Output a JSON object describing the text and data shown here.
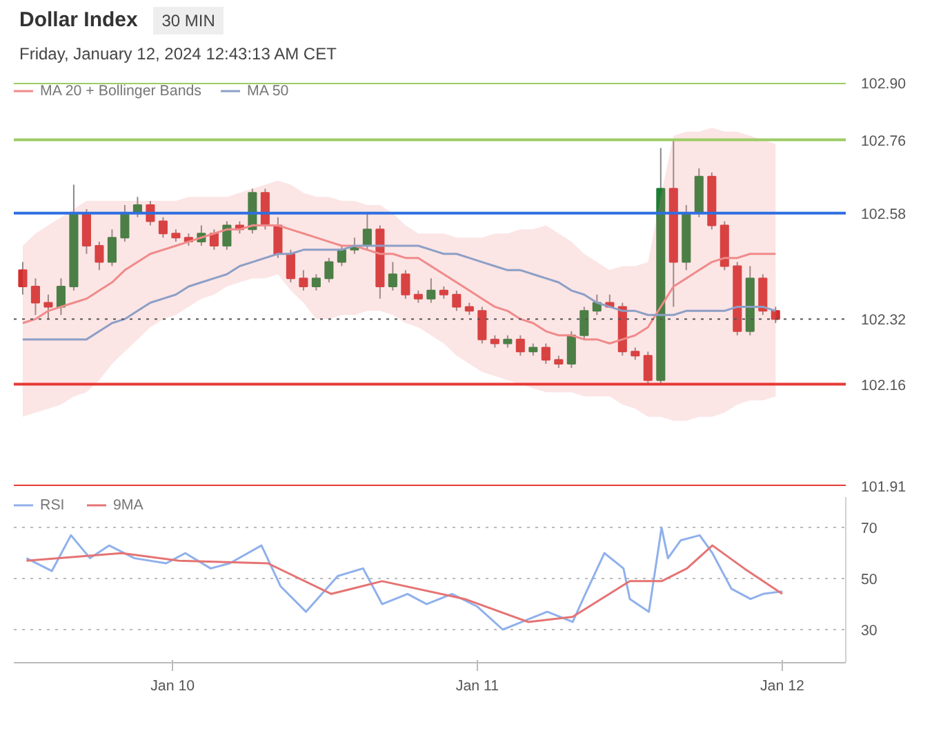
{
  "chart_data": [
    {
      "type": "candlestick",
      "title": "Dollar Index",
      "subtitle": "30 MIN",
      "annotations": [
        "Friday, January 12, 2024 12:43:13 AM CET"
      ],
      "categories": [
        null,
        null,
        null,
        null,
        null,
        null,
        null,
        null,
        null,
        null,
        null,
        null,
        null,
        null,
        null,
        null,
        null,
        null,
        null,
        null,
        null,
        null,
        null,
        null,
        null,
        null,
        null,
        null,
        null,
        null,
        null,
        null,
        null,
        null,
        null,
        null,
        null,
        null,
        null,
        null,
        null,
        null,
        null,
        null,
        null,
        null,
        null,
        null,
        null,
        null,
        null,
        null,
        null,
        null,
        null,
        null,
        null,
        null,
        null,
        null
      ],
      "ohlc": [
        [
          102.44,
          102.46,
          102.38,
          102.4
        ],
        [
          102.4,
          102.42,
          102.33,
          102.36
        ],
        [
          102.36,
          102.38,
          102.32,
          102.35
        ],
        [
          102.35,
          102.42,
          102.33,
          102.4
        ],
        [
          102.4,
          102.65,
          102.39,
          102.58
        ],
        [
          102.58,
          102.59,
          102.48,
          102.5
        ],
        [
          102.5,
          102.51,
          102.44,
          102.46
        ],
        [
          102.46,
          102.54,
          102.45,
          102.52
        ],
        [
          102.52,
          102.6,
          102.51,
          102.58
        ],
        [
          102.58,
          102.62,
          102.57,
          102.6
        ],
        [
          102.6,
          102.61,
          102.55,
          102.56
        ],
        [
          102.56,
          102.57,
          102.52,
          102.53
        ],
        [
          102.53,
          102.54,
          102.51,
          102.52
        ],
        [
          102.52,
          102.53,
          102.5,
          102.51
        ],
        [
          102.51,
          102.55,
          102.5,
          102.53
        ],
        [
          102.53,
          102.54,
          102.49,
          102.5
        ],
        [
          102.5,
          102.56,
          102.49,
          102.55
        ],
        [
          102.55,
          102.56,
          102.53,
          102.54
        ],
        [
          102.54,
          102.64,
          102.53,
          102.63
        ],
        [
          102.63,
          102.64,
          102.54,
          102.55
        ],
        [
          102.55,
          102.57,
          102.47,
          102.48
        ],
        [
          102.48,
          102.49,
          102.41,
          102.42
        ],
        [
          102.42,
          102.44,
          102.39,
          102.4
        ],
        [
          102.4,
          102.43,
          102.39,
          102.42
        ],
        [
          102.42,
          102.47,
          102.41,
          102.46
        ],
        [
          102.46,
          102.5,
          102.45,
          102.49
        ],
        [
          102.49,
          102.52,
          102.48,
          102.5
        ],
        [
          102.5,
          102.58,
          102.49,
          102.54
        ],
        [
          102.54,
          102.55,
          102.37,
          102.4
        ],
        [
          102.4,
          102.46,
          102.39,
          102.43
        ],
        [
          102.43,
          102.44,
          102.37,
          102.38
        ],
        [
          102.38,
          102.39,
          102.36,
          102.37
        ],
        [
          102.37,
          102.42,
          102.36,
          102.39
        ],
        [
          102.39,
          102.4,
          102.37,
          102.38
        ],
        [
          102.38,
          102.39,
          102.34,
          102.35
        ],
        [
          102.35,
          102.36,
          102.33,
          102.34
        ],
        [
          102.34,
          102.35,
          102.26,
          102.27
        ],
        [
          102.27,
          102.28,
          102.25,
          102.26
        ],
        [
          102.26,
          102.28,
          102.25,
          102.27
        ],
        [
          102.27,
          102.28,
          102.23,
          102.24
        ],
        [
          102.24,
          102.26,
          102.23,
          102.25
        ],
        [
          102.25,
          102.26,
          102.21,
          102.22
        ],
        [
          102.22,
          102.23,
          102.2,
          102.21
        ],
        [
          102.21,
          102.29,
          102.2,
          102.28
        ],
        [
          102.28,
          102.35,
          102.27,
          102.34
        ],
        [
          102.34,
          102.38,
          102.33,
          102.36
        ],
        [
          102.36,
          102.38,
          102.35,
          102.35
        ],
        [
          102.35,
          102.36,
          102.23,
          102.24
        ],
        [
          102.24,
          102.25,
          102.22,
          102.23
        ],
        [
          102.23,
          102.24,
          102.16,
          102.17
        ],
        [
          102.17,
          102.74,
          102.16,
          102.64
        ],
        [
          102.64,
          102.76,
          102.35,
          102.46
        ],
        [
          102.46,
          102.6,
          102.44,
          102.58
        ],
        [
          102.58,
          102.69,
          102.57,
          102.67
        ],
        [
          102.67,
          102.68,
          102.54,
          102.55
        ],
        [
          102.55,
          102.56,
          102.44,
          102.45
        ],
        [
          102.45,
          102.46,
          102.28,
          102.29
        ],
        [
          102.29,
          102.45,
          102.28,
          102.42
        ],
        [
          102.42,
          102.43,
          102.33,
          102.34
        ],
        [
          102.34,
          102.35,
          102.31,
          102.32
        ]
      ],
      "colors": [
        "#d32f2f",
        "#d32f2f",
        "#d32f2f",
        "#1e7d34",
        "#1e7d34",
        "#d32f2f",
        "#d32f2f",
        "#1e7d34",
        "#1e7d34",
        "#1e7d34",
        "#d32f2f",
        "#d32f2f",
        "#d32f2f",
        "#d32f2f",
        "#1e7d34",
        "#d32f2f",
        "#1e7d34",
        "#d32f2f",
        "#1e7d34",
        "#d32f2f",
        "#d32f2f",
        "#d32f2f",
        "#d32f2f",
        "#1e7d34",
        "#1e7d34",
        "#1e7d34",
        "#1e7d34",
        "#1e7d34",
        "#d32f2f",
        "#1e7d34",
        "#d32f2f",
        "#d32f2f",
        "#1e7d34",
        "#d32f2f",
        "#d32f2f",
        "#d32f2f",
        "#d32f2f",
        "#d32f2f",
        "#1e7d34",
        "#d32f2f",
        "#1e7d34",
        "#d32f2f",
        "#d32f2f",
        "#1e7d34",
        "#1e7d34",
        "#1e7d34",
        "#d32f2f",
        "#d32f2f",
        "#d32f2f",
        "#d32f2f",
        "#1e7d34",
        "#d32f2f",
        "#1e7d34",
        "#1e7d34",
        "#d32f2f",
        "#d32f2f",
        "#d32f2f",
        "#1e7d34",
        "#d32f2f",
        "#d32f2f"
      ],
      "series": [
        {
          "name": "MA 20 + Bollinger Bands",
          "type": "line",
          "color": "#f08a8a",
          "values": [
            102.31,
            102.32,
            102.34,
            102.35,
            102.36,
            102.37,
            102.39,
            102.41,
            102.44,
            102.46,
            102.48,
            102.49,
            102.5,
            102.51,
            102.52,
            102.53,
            102.54,
            102.54,
            102.55,
            102.55,
            102.55,
            102.54,
            102.53,
            102.52,
            102.51,
            102.5,
            102.5,
            102.49,
            102.48,
            102.48,
            102.47,
            102.47,
            102.45,
            102.43,
            102.41,
            102.39,
            102.37,
            102.35,
            102.34,
            102.32,
            102.31,
            102.29,
            102.28,
            102.28,
            102.27,
            102.27,
            102.26,
            102.27,
            102.28,
            102.3,
            102.35,
            102.4,
            102.42,
            102.44,
            102.46,
            102.47,
            102.47,
            102.48,
            102.48,
            102.48
          ],
          "lower": [
            102.08,
            102.09,
            102.1,
            102.11,
            102.13,
            102.14,
            102.17,
            102.21,
            102.24,
            102.27,
            102.3,
            102.32,
            102.33,
            102.35,
            102.37,
            102.38,
            102.4,
            102.41,
            102.42,
            102.42,
            102.43,
            102.39,
            102.36,
            102.32,
            102.32,
            102.33,
            102.33,
            102.34,
            102.34,
            102.33,
            102.31,
            102.3,
            102.28,
            102.26,
            102.23,
            102.21,
            102.19,
            102.18,
            102.17,
            102.16,
            102.15,
            102.14,
            102.14,
            102.14,
            102.13,
            102.13,
            102.13,
            102.11,
            102.1,
            102.08,
            102.08,
            102.07,
            102.07,
            102.08,
            102.08,
            102.09,
            102.11,
            102.12,
            102.12,
            102.13
          ],
          "upper": [
            102.5,
            102.53,
            102.55,
            102.57,
            102.59,
            102.61,
            102.61,
            102.61,
            102.61,
            102.61,
            102.61,
            102.61,
            102.61,
            102.62,
            102.62,
            102.62,
            102.62,
            102.63,
            102.64,
            102.65,
            102.66,
            102.65,
            102.63,
            102.62,
            102.62,
            102.61,
            102.61,
            102.6,
            102.6,
            102.58,
            102.55,
            102.53,
            102.53,
            102.53,
            102.52,
            102.52,
            102.52,
            102.53,
            102.53,
            102.54,
            102.54,
            102.55,
            102.53,
            102.51,
            102.48,
            102.46,
            102.44,
            102.45,
            102.45,
            102.46,
            102.62,
            102.77,
            102.78,
            102.78,
            102.79,
            102.78,
            102.78,
            102.77,
            102.76,
            102.75
          ]
        },
        {
          "name": "MA 50",
          "type": "line",
          "color": "#8c9fc6",
          "values": [
            102.27,
            102.27,
            102.27,
            102.27,
            102.27,
            102.27,
            102.29,
            102.31,
            102.32,
            102.34,
            102.36,
            102.37,
            102.38,
            102.4,
            102.41,
            102.42,
            102.43,
            102.45,
            102.46,
            102.47,
            102.48,
            102.48,
            102.49,
            102.49,
            102.49,
            102.49,
            102.5,
            102.5,
            102.5,
            102.5,
            102.5,
            102.5,
            102.49,
            102.48,
            102.48,
            102.47,
            102.46,
            102.45,
            102.44,
            102.44,
            102.43,
            102.42,
            102.41,
            102.39,
            102.38,
            102.36,
            102.35,
            102.34,
            102.34,
            102.33,
            102.33,
            102.33,
            102.34,
            102.34,
            102.34,
            102.34,
            102.35,
            102.35,
            102.35,
            102.34
          ]
        }
      ],
      "ref_lines": [
        {
          "axis": "y",
          "value": 102.9,
          "color": "#9ccc65",
          "line_style": "solid"
        },
        {
          "axis": "y",
          "value": 102.76,
          "color": "#9ccc65",
          "line_style": "solid"
        },
        {
          "axis": "y",
          "value": 102.58,
          "color": "#2f6fe0",
          "line_style": "solid"
        },
        {
          "axis": "y",
          "value": 102.32,
          "color": "#555555",
          "line_style": "dotted"
        },
        {
          "axis": "y",
          "value": 102.16,
          "color": "#e53935",
          "line_style": "solid"
        },
        {
          "axis": "y",
          "value": 101.91,
          "color": "#e53935",
          "line_style": "solid"
        }
      ],
      "ylim": [
        101.91,
        102.9
      ],
      "yticks": [
        {
          "value": 102.9,
          "label": "102.90"
        },
        102.76,
        102.58,
        102.32,
        102.16,
        101.91
      ],
      "tick_labels": "y",
      "grid": false,
      "legend": "top left"
    },
    {
      "type": "line",
      "series": [
        {
          "name": "RSI",
          "color": "#8fb0ec",
          "x": [
            "2024-01-09T12:30",
            "2024-01-09T14:30",
            "2024-01-09T16:00",
            "2024-01-09T17:30",
            "2024-01-09T19:00",
            "2024-01-09T21:00",
            "2024-01-09T23:30",
            "2024-01-10T01:00",
            "2024-01-10T03:00",
            "2024-01-10T04:30",
            "2024-01-10T07:00",
            "2024-01-10T08:30",
            "2024-01-10T10:30",
            "2024-01-10T13:00",
            "2024-01-10T15:00",
            "2024-01-10T16:30",
            "2024-01-10T18:30",
            "2024-01-10T20:00",
            "2024-01-10T22:00",
            "2024-01-11T00:00",
            "2024-01-11T02:00",
            "2024-01-11T03:30",
            "2024-01-11T05:30",
            "2024-01-11T07:30",
            "2024-01-11T08:30",
            "2024-01-11T10:00",
            "2024-01-11T11:30",
            "2024-01-11T12:00",
            "2024-01-11T13:30",
            "2024-01-11T14:30",
            "2024-01-11T15:00",
            "2024-01-11T16:00",
            "2024-01-11T17:30",
            "2024-01-11T18:30",
            "2024-01-11T20:00",
            "2024-01-11T21:30",
            "2024-01-11T22:30",
            "2024-01-12T00:00"
          ],
          "values": [
            58,
            53,
            67,
            58,
            63,
            58,
            56,
            60,
            54,
            56,
            63,
            47,
            37,
            51,
            54,
            40,
            44,
            40,
            44,
            39,
            30,
            33,
            37,
            33,
            44,
            60,
            54,
            42,
            37,
            70,
            58,
            65,
            67,
            60,
            46,
            42,
            44,
            45
          ]
        },
        {
          "name": "9MA",
          "color": "#e57373",
          "x": [
            "2024-01-09T12:30",
            "2024-01-09T20:00",
            "2024-01-10T00:30",
            "2024-01-10T07:30",
            "2024-01-10T12:30",
            "2024-01-10T16:30",
            "2024-01-10T23:00",
            "2024-01-11T04:00",
            "2024-01-11T07:30",
            "2024-01-11T12:00",
            "2024-01-11T14:30",
            "2024-01-11T16:30",
            "2024-01-11T18:30",
            "2024-01-11T21:00",
            "2024-01-12T00:00"
          ],
          "values": [
            57,
            60,
            57,
            56,
            44,
            49,
            42,
            33,
            35,
            49,
            49,
            54,
            63,
            54,
            44
          ]
        }
      ],
      "xlim": [
        "2024-01-09T11:30",
        "2024-01-12T05:00"
      ],
      "xticks": [
        {
          "value": "2024-01-10",
          "label": "Jan 10"
        },
        {
          "value": "2024-01-11",
          "label": "Jan 11"
        },
        {
          "value": "2024-01-12",
          "label": "Jan 12"
        }
      ],
      "ylim": [
        17,
        82
      ],
      "yticks": [
        30,
        50,
        70
      ],
      "grid": "y",
      "legend": "top left"
    }
  ]
}
